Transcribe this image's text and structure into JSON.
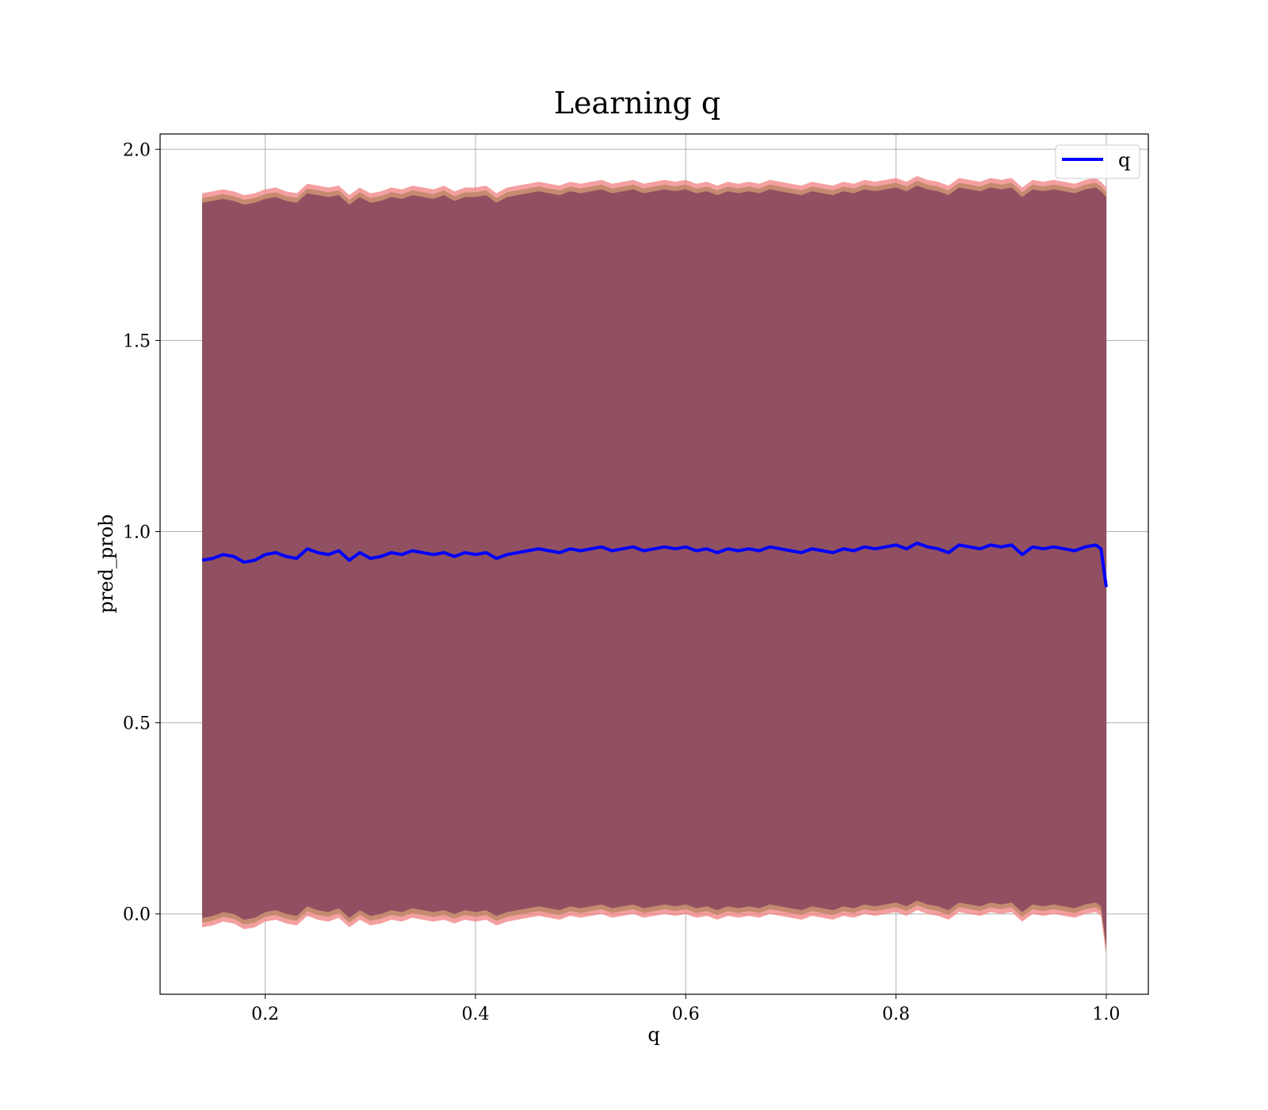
{
  "chart_data": {
    "type": "area",
    "title": "Learning q",
    "xlabel": "q",
    "ylabel": "pred_prob",
    "xlim": [
      0.1,
      1.04
    ],
    "ylim": [
      -0.21,
      2.04
    ],
    "x_ticks": [
      0.2,
      0.4,
      0.6,
      0.8,
      1.0
    ],
    "x_tick_labels": [
      "0.2",
      "0.4",
      "0.6",
      "0.8",
      "1.0"
    ],
    "y_ticks": [
      0.0,
      0.5,
      1.0,
      1.5,
      2.0
    ],
    "y_tick_labels": [
      "0.0",
      "0.5",
      "1.0",
      "1.5",
      "2.0"
    ],
    "grid": true,
    "legend": {
      "position": "top-right",
      "entries": [
        "q"
      ]
    },
    "colors": {
      "line": "#0000ff",
      "outer_band": "#f08080",
      "inner_band": "#8b4b60",
      "mid_band": "#c0876a",
      "grid": "#b0b0b0"
    },
    "series": [
      {
        "name": "q",
        "x": [
          0.14,
          0.15,
          0.16,
          0.17,
          0.18,
          0.19,
          0.2,
          0.21,
          0.22,
          0.23,
          0.24,
          0.25,
          0.26,
          0.27,
          0.28,
          0.29,
          0.3,
          0.31,
          0.32,
          0.33,
          0.34,
          0.35,
          0.36,
          0.37,
          0.38,
          0.39,
          0.4,
          0.41,
          0.42,
          0.43,
          0.44,
          0.45,
          0.46,
          0.47,
          0.48,
          0.49,
          0.5,
          0.51,
          0.52,
          0.53,
          0.54,
          0.55,
          0.56,
          0.57,
          0.58,
          0.59,
          0.6,
          0.61,
          0.62,
          0.63,
          0.64,
          0.65,
          0.66,
          0.67,
          0.68,
          0.69,
          0.7,
          0.71,
          0.72,
          0.73,
          0.74,
          0.75,
          0.76,
          0.77,
          0.78,
          0.79,
          0.8,
          0.81,
          0.82,
          0.83,
          0.84,
          0.85,
          0.86,
          0.87,
          0.88,
          0.89,
          0.9,
          0.91,
          0.92,
          0.93,
          0.94,
          0.95,
          0.96,
          0.97,
          0.98,
          0.99,
          0.995,
          1.0
        ],
        "y": [
          0.925,
          0.93,
          0.94,
          0.935,
          0.92,
          0.925,
          0.94,
          0.945,
          0.935,
          0.93,
          0.955,
          0.945,
          0.94,
          0.95,
          0.925,
          0.945,
          0.93,
          0.935,
          0.945,
          0.94,
          0.95,
          0.945,
          0.94,
          0.945,
          0.935,
          0.945,
          0.94,
          0.945,
          0.93,
          0.94,
          0.945,
          0.95,
          0.955,
          0.95,
          0.945,
          0.955,
          0.95,
          0.955,
          0.96,
          0.95,
          0.955,
          0.96,
          0.95,
          0.955,
          0.96,
          0.955,
          0.96,
          0.95,
          0.955,
          0.945,
          0.955,
          0.95,
          0.955,
          0.95,
          0.96,
          0.955,
          0.95,
          0.945,
          0.955,
          0.95,
          0.945,
          0.955,
          0.95,
          0.96,
          0.955,
          0.96,
          0.965,
          0.955,
          0.97,
          0.96,
          0.955,
          0.945,
          0.965,
          0.96,
          0.955,
          0.965,
          0.96,
          0.965,
          0.94,
          0.96,
          0.955,
          0.96,
          0.955,
          0.95,
          0.96,
          0.965,
          0.955,
          0.855
        ],
        "upper_outer": [
          1.885,
          1.89,
          1.895,
          1.89,
          1.88,
          1.885,
          1.895,
          1.9,
          1.89,
          1.885,
          1.91,
          1.905,
          1.9,
          1.905,
          1.88,
          1.9,
          1.885,
          1.89,
          1.9,
          1.895,
          1.905,
          1.9,
          1.895,
          1.905,
          1.89,
          1.9,
          1.9,
          1.905,
          1.885,
          1.9,
          1.905,
          1.91,
          1.915,
          1.91,
          1.905,
          1.915,
          1.91,
          1.915,
          1.92,
          1.91,
          1.915,
          1.92,
          1.91,
          1.915,
          1.92,
          1.915,
          1.92,
          1.91,
          1.915,
          1.905,
          1.915,
          1.91,
          1.915,
          1.91,
          1.92,
          1.915,
          1.91,
          1.905,
          1.915,
          1.91,
          1.905,
          1.915,
          1.91,
          1.92,
          1.915,
          1.92,
          1.925,
          1.915,
          1.93,
          1.92,
          1.915,
          1.905,
          1.925,
          1.92,
          1.915,
          1.925,
          1.92,
          1.925,
          1.9,
          1.92,
          1.915,
          1.92,
          1.915,
          1.91,
          1.92,
          1.925,
          1.915,
          1.9
        ],
        "lower_outer": [
          -0.035,
          -0.03,
          -0.02,
          -0.025,
          -0.04,
          -0.035,
          -0.02,
          -0.015,
          -0.025,
          -0.03,
          -0.005,
          -0.015,
          -0.02,
          -0.01,
          -0.035,
          -0.015,
          -0.03,
          -0.025,
          -0.015,
          -0.02,
          -0.01,
          -0.015,
          -0.02,
          -0.015,
          -0.025,
          -0.015,
          -0.02,
          -0.015,
          -0.03,
          -0.02,
          -0.015,
          -0.01,
          -0.005,
          -0.01,
          -0.015,
          -0.005,
          -0.01,
          -0.005,
          0.0,
          -0.01,
          -0.005,
          0.0,
          -0.01,
          -0.005,
          0.0,
          -0.005,
          0.0,
          -0.01,
          -0.005,
          -0.015,
          -0.005,
          -0.01,
          -0.005,
          -0.01,
          0.0,
          -0.005,
          -0.01,
          -0.015,
          -0.005,
          -0.01,
          -0.015,
          -0.005,
          -0.01,
          0.0,
          -0.005,
          0.0,
          0.005,
          -0.005,
          0.01,
          0.0,
          -0.005,
          -0.015,
          0.005,
          0.0,
          -0.005,
          0.005,
          0.0,
          0.005,
          -0.02,
          0.0,
          -0.005,
          0.0,
          -0.005,
          -0.01,
          0.0,
          0.005,
          -0.005,
          -0.11
        ]
      }
    ]
  }
}
